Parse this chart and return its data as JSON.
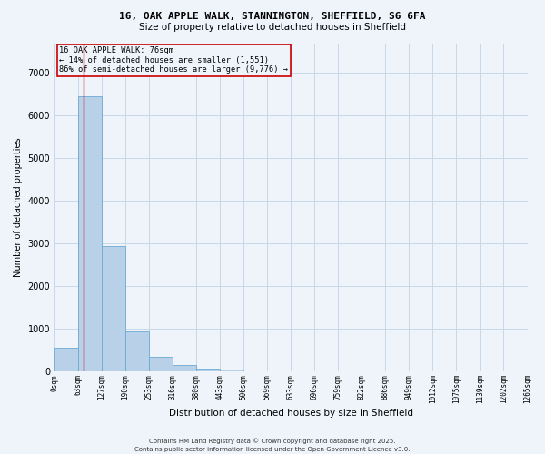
{
  "title1": "16, OAK APPLE WALK, STANNINGTON, SHEFFIELD, S6 6FA",
  "title2": "Size of property relative to detached houses in Sheffield",
  "xlabel": "Distribution of detached houses by size in Sheffield",
  "ylabel": "Number of detached properties",
  "bar_values": [
    550,
    6450,
    2950,
    950,
    350,
    150,
    80,
    50,
    0,
    0,
    0,
    0,
    0,
    0,
    0,
    0,
    0,
    0,
    0,
    0
  ],
  "bin_labels": [
    "0sqm",
    "63sqm",
    "127sqm",
    "190sqm",
    "253sqm",
    "316sqm",
    "380sqm",
    "443sqm",
    "506sqm",
    "569sqm",
    "633sqm",
    "696sqm",
    "759sqm",
    "822sqm",
    "886sqm",
    "949sqm",
    "1012sqm",
    "1075sqm",
    "1139sqm",
    "1202sqm",
    "1265sqm"
  ],
  "bar_color": "#b8d0e8",
  "bar_edge_color": "#6aaad4",
  "vline_x": 1.21,
  "vline_color": "#cc0000",
  "annotation_text": "16 OAK APPLE WALK: 76sqm\n← 14% of detached houses are smaller (1,551)\n86% of semi-detached houses are larger (9,776) →",
  "annotation_box_color": "#cc0000",
  "ylim": [
    0,
    7700
  ],
  "yticks": [
    0,
    1000,
    2000,
    3000,
    4000,
    5000,
    6000,
    7000
  ],
  "grid_color": "#c8d8e8",
  "bg_color": "#eef4fa",
  "footer1": "Contains HM Land Registry data © Crown copyright and database right 2025.",
  "footer2": "Contains public sector information licensed under the Open Government Licence v3.0."
}
